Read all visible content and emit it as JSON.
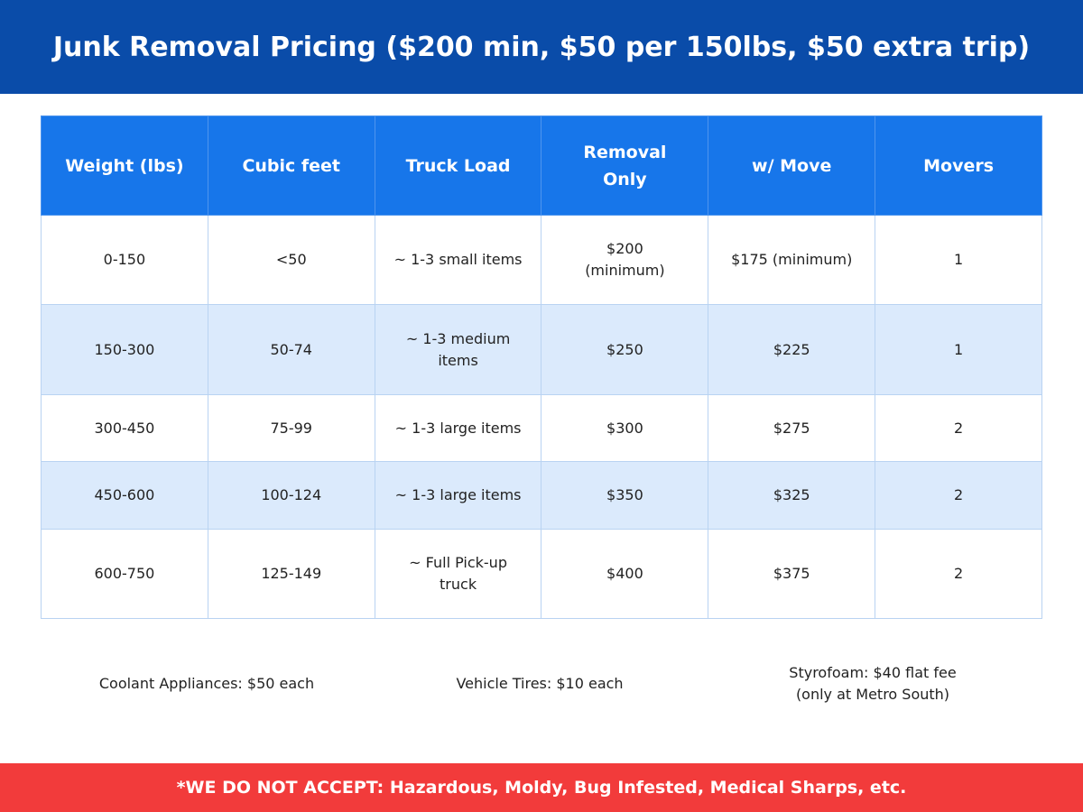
{
  "header": {
    "title": "Junk Removal Pricing ($200 min, $50 per 150lbs, $50 extra trip)"
  },
  "table": {
    "columns": [
      "Weight (lbs)",
      "Cubic feet",
      "Truck Load",
      [
        "Removal",
        "Only"
      ],
      "w/ Move",
      "Movers"
    ],
    "rows": [
      [
        "0-150",
        "<50",
        "~ 1-3 small items",
        [
          "$200",
          "(minimum)"
        ],
        "$175 (minimum)",
        "1"
      ],
      [
        "150-300",
        "50-74",
        [
          "~ 1-3 medium",
          "items"
        ],
        "$250",
        "$225",
        "1"
      ],
      [
        "300-450",
        "75-99",
        "~ 1-3 large items",
        "$300",
        "$275",
        "2"
      ],
      [
        "450-600",
        "100-124",
        "~ 1-3 large items",
        "$350",
        "$325",
        "2"
      ],
      [
        "600-750",
        "125-149",
        [
          "~ Full Pick-up",
          "truck"
        ],
        "$400",
        "$375",
        "2"
      ]
    ]
  },
  "notes": [
    "Coolant Appliances: $50 each",
    "Vehicle Tires: $10 each",
    [
      "Styrofoam: $40 flat fee",
      "(only at Metro South)"
    ]
  ],
  "footer": {
    "text": "*WE DO NOT ACCEPT: Hazardous, Moldy, Bug Infested, Medical Sharps, etc."
  }
}
